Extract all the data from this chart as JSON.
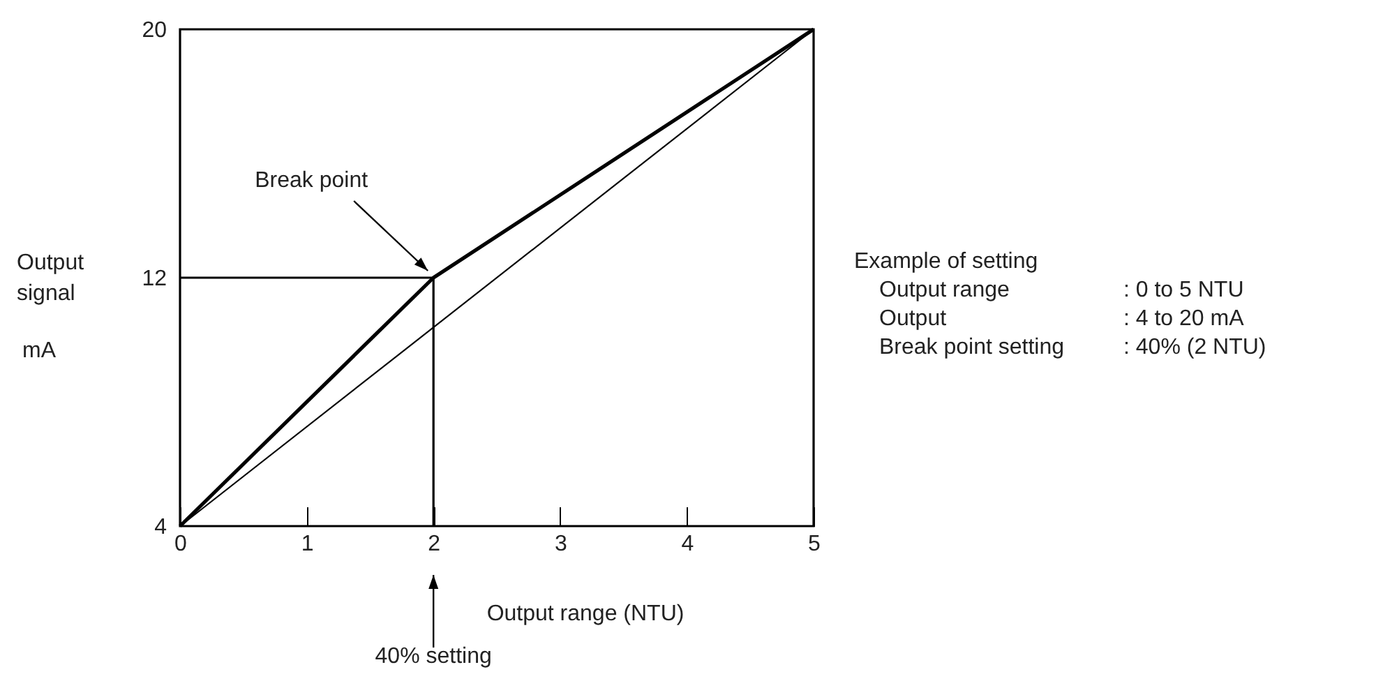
{
  "chart_data": {
    "type": "line",
    "xlabel": "Output range (NTU)",
    "ylabel": "Output signal",
    "xlim": [
      0,
      5
    ],
    "xticks": [
      0,
      1,
      2,
      3,
      4,
      5
    ],
    "ylim": [
      4,
      20
    ],
    "yticks": [
      4,
      12,
      20
    ],
    "grid": false,
    "marker": "none",
    "line_style": "solid",
    "series": [
      {
        "color": "#000000",
        "x": [
          0,
          2,
          5
        ],
        "values": [
          4,
          12,
          20
        ]
      },
      {
        "color": "#000000",
        "x": [
          0,
          5
        ],
        "values": [
          4,
          20
        ]
      },
      {
        "color": "#000000",
        "x": [
          0,
          2,
          2
        ],
        "values": [
          12,
          12,
          4
        ]
      }
    ],
    "annotations": [
      {
        "text": "Break point",
        "x": 2,
        "y": 12
      },
      "40% setting",
      "mA",
      "Example of setting",
      "Output range : 0 to 5 NTU",
      "Output : 4 to 20 mA",
      "Break point setting : 40% (2 NTU)"
    ]
  }
}
